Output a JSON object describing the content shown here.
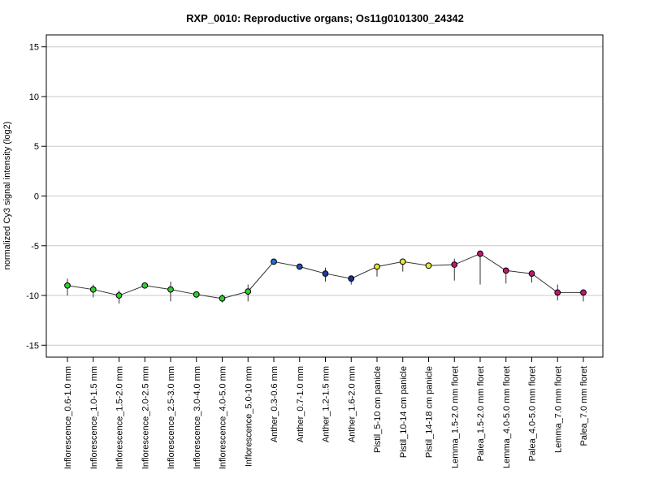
{
  "colors": {
    "line": "#333333",
    "grid": "#c8c8c8",
    "frame": "#000000",
    "marker_stroke": "#000000"
  },
  "chart_data": {
    "type": "line",
    "title": "RXP_0010: Reproductive organs; Os11g0101300_24342",
    "xlabel": "",
    "ylabel": "normalized Cy3 signal intensity (log2)",
    "ylim": [
      -16.2,
      16.2
    ],
    "yticks": [
      -15,
      -10,
      -5,
      0,
      5,
      10,
      15
    ],
    "grid": true,
    "categories": [
      "Inflorescence_0.6-1.0 mm",
      "Inflorescence_1.0-1.5 mm",
      "Inflorescence_1.5-2.0 mm",
      "Inflorescence_2.0-2.5 mm",
      "Inflorescence_2.5-3.0 mm",
      "Inflorescence_3.0-4.0 mm",
      "Inflorescence_4.0-5.0 mm",
      "Inflorescence_5.0-10 mm",
      "Anther_0.3-0.6 mm",
      "Anther_0.7-1.0 mm",
      "Anther_1.2-1.5 mm",
      "Anther_1.6-2.0 mm",
      "Pistil_5-10 cm panicle",
      "Pistil_10-14 cm panicle",
      "Pistil_14-18 cm panicle",
      "Lemma_1.5-2.0 mm floret",
      "Palea_1.5-2.0 mm floret",
      "Lemma_4.0-5.0 mm floret",
      "Palea_4.0-5.0 mm floret",
      "Lemma_7.0 mm floret",
      "Palea_7.0 mm floret"
    ],
    "values": [
      -9.0,
      -9.4,
      -10.0,
      -9.0,
      -9.4,
      -9.9,
      -10.3,
      -9.6,
      -6.6,
      -7.1,
      -7.8,
      -8.3,
      -7.1,
      -6.6,
      -7.0,
      -6.9,
      -5.8,
      -7.5,
      -7.8,
      -9.7,
      -9.7
    ],
    "error_low": [
      -10.0,
      -10.2,
      -10.8,
      -9.0,
      -10.6,
      -9.9,
      -10.7,
      -10.6,
      -6.6,
      -7.1,
      -8.6,
      -8.9,
      -8.1,
      -7.6,
      -7.0,
      -8.5,
      -8.9,
      -8.8,
      -8.7,
      -10.5,
      -10.6
    ],
    "error_high": [
      -8.3,
      -8.9,
      -9.5,
      -9.0,
      -8.6,
      -9.9,
      -9.9,
      -8.9,
      -6.6,
      -7.1,
      -7.2,
      -8.3,
      -6.8,
      -6.6,
      -7.0,
      -6.3,
      -5.8,
      -7.5,
      -7.8,
      -8.9,
      -9.7
    ],
    "marker_colors": [
      "#33cc33",
      "#33cc33",
      "#33cc33",
      "#33cc33",
      "#33cc33",
      "#33cc33",
      "#33cc33",
      "#33cc33",
      "#1f6fd1",
      "#1f4fb8",
      "#1f3aa8",
      "#1a2e9a",
      "#e8e83a",
      "#e8e83a",
      "#e8e83a",
      "#c01870",
      "#c01870",
      "#c01870",
      "#c01870",
      "#c01870",
      "#c01870"
    ]
  }
}
